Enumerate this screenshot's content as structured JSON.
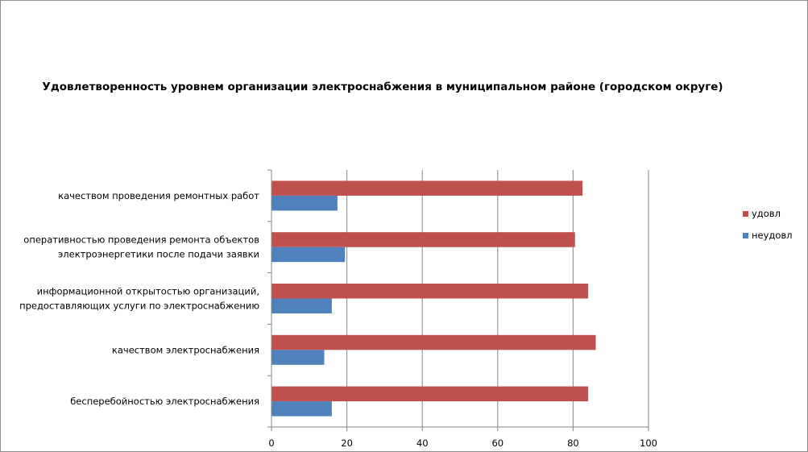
{
  "chart_data": {
    "type": "bar",
    "orientation": "horizontal",
    "title": "Удовлетворенность уровнем организации электроснабжения в муниципальном районе (городском округе)",
    "categories": [
      [
        "качеством проведения ремонтных работ"
      ],
      [
        "оперативностью проведения ремонта объектов",
        "электроэнергетики после подачи заявки"
      ],
      [
        "информационной открытостью организаций,",
        "предоставляющих услуги по электроснабжению"
      ],
      [
        "качеством электроснабжения"
      ],
      [
        "бесперебойностью электроснабжения"
      ]
    ],
    "series": [
      {
        "name": "удовл",
        "color": "#c0504d",
        "values": [
          82.5,
          80.5,
          84,
          86,
          84
        ]
      },
      {
        "name": "неудовл",
        "color": "#4f81bd",
        "values": [
          17.5,
          19.5,
          16,
          14,
          16
        ]
      }
    ],
    "xlim": [
      0,
      100
    ],
    "xticks": [
      0,
      20,
      40,
      60,
      80,
      100
    ],
    "grid": true,
    "legend_position": "right"
  }
}
